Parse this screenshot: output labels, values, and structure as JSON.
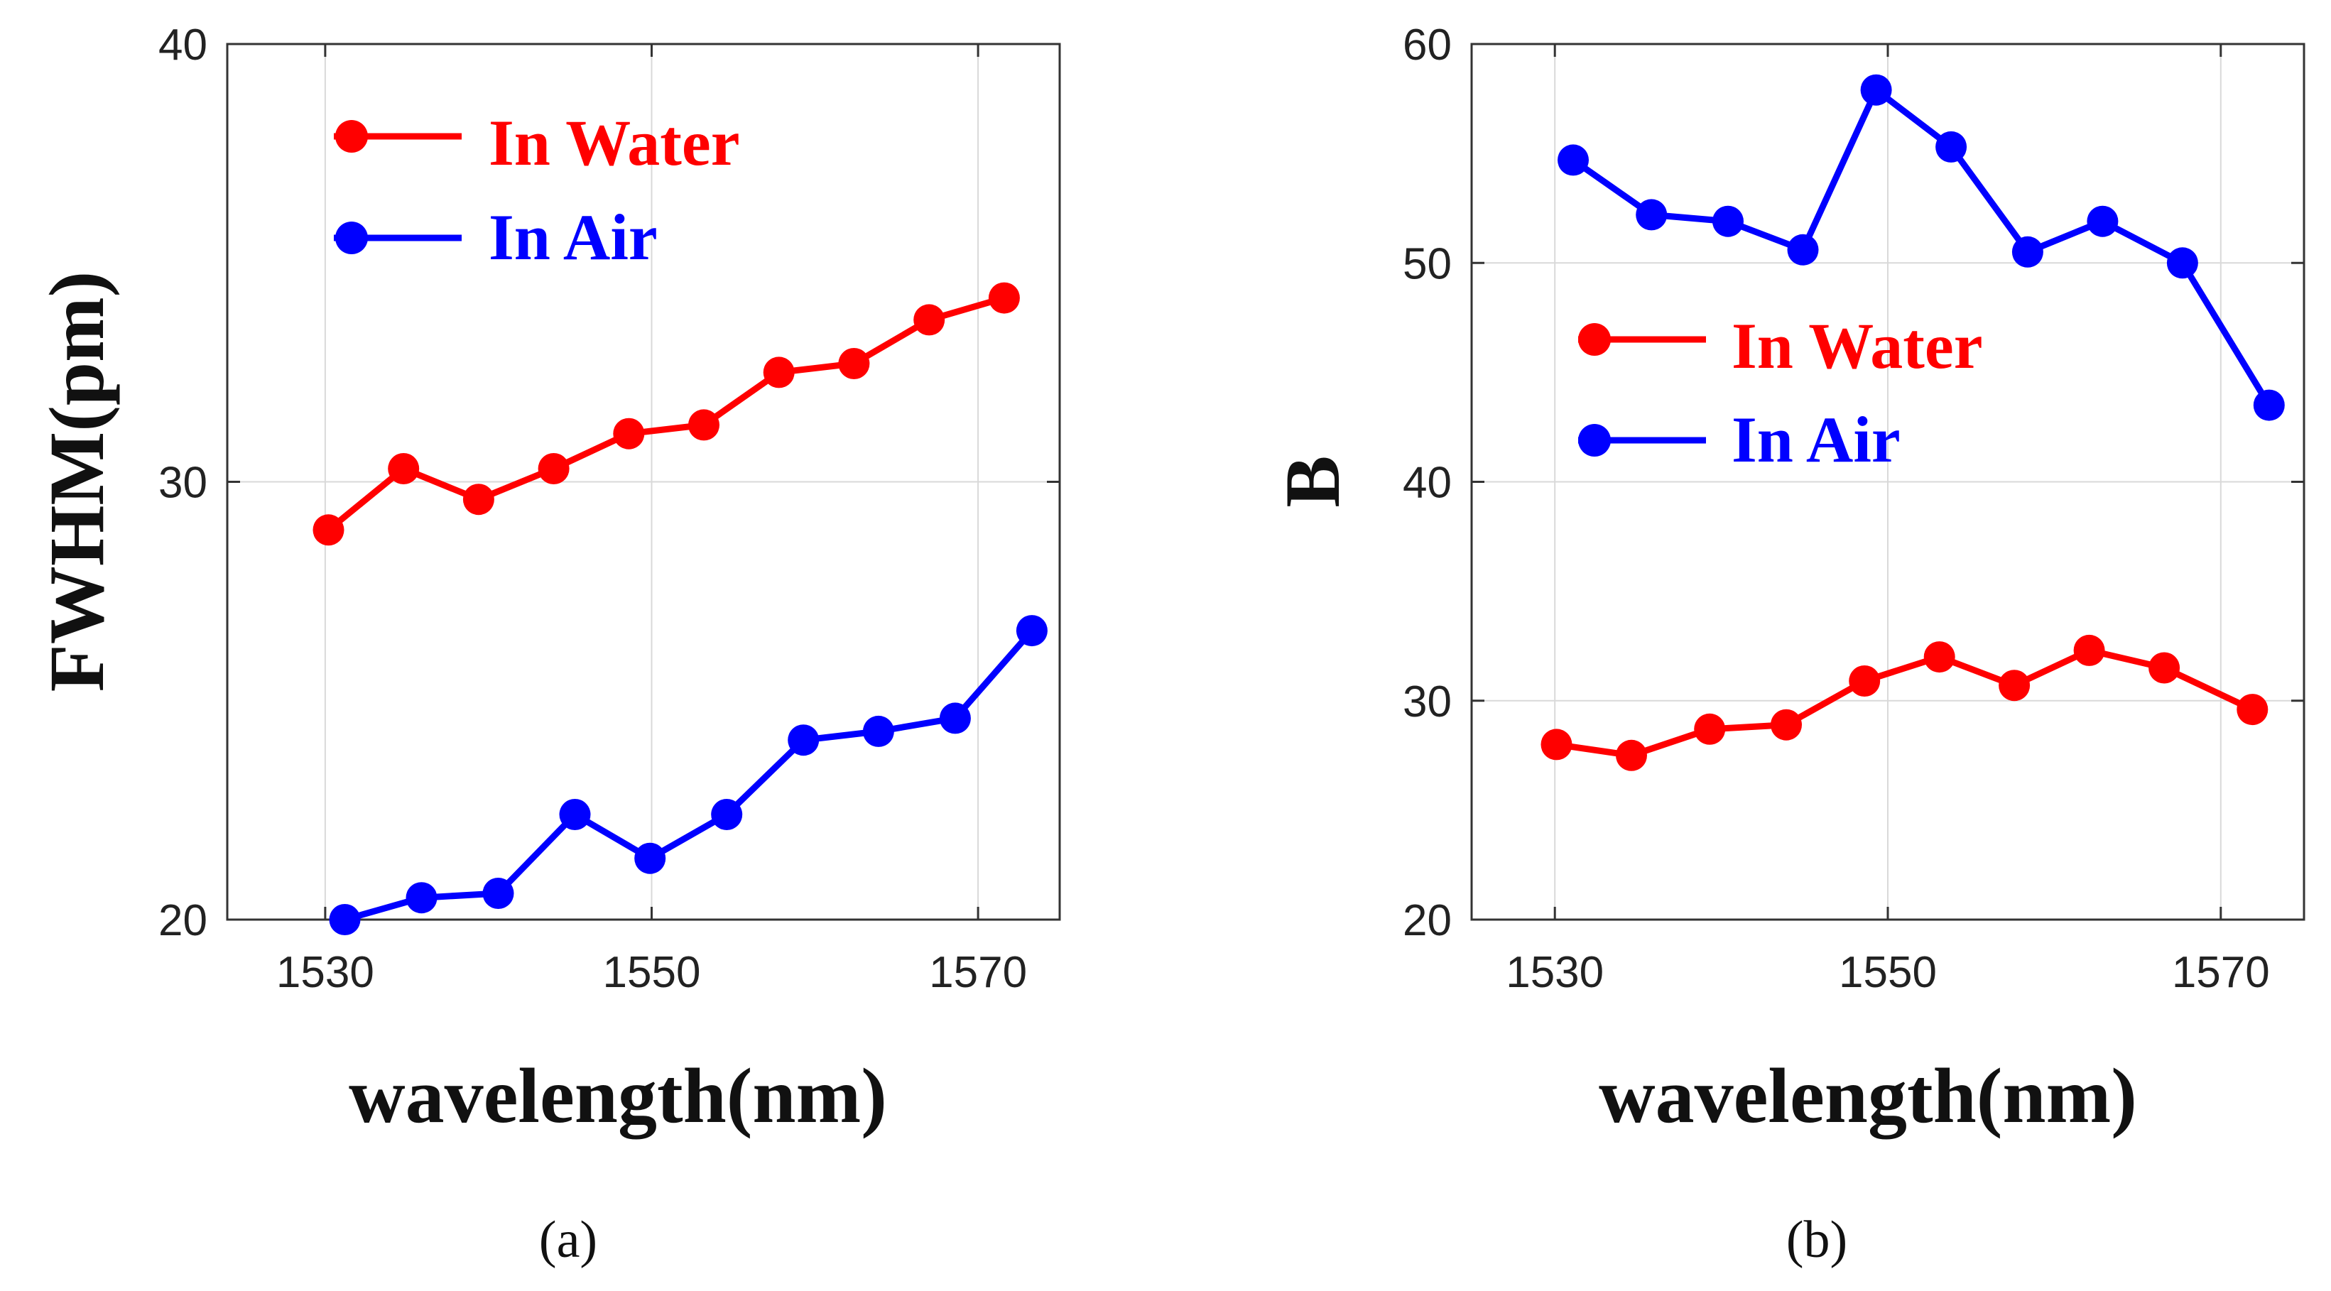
{
  "chart_data": [
    {
      "type": "line",
      "panel_label": "(a)",
      "title": "",
      "xlabel": "wavelength(nm)",
      "ylabel": "FWHM(pm)",
      "xlim": [
        1524,
        1575
      ],
      "ylim": [
        20,
        40
      ],
      "xticks": [
        1530,
        1550,
        1570
      ],
      "yticks": [
        20,
        30,
        40
      ],
      "grid": true,
      "legend_position": "top-left",
      "series": [
        {
          "name": "In Water",
          "color": "#ff0000",
          "x": [
            1530.2,
            1534.8,
            1539.4,
            1544.0,
            1548.6,
            1553.2,
            1557.8,
            1562.4,
            1567.0,
            1571.6
          ],
          "y": [
            28.9,
            30.3,
            29.6,
            30.3,
            31.1,
            31.3,
            32.5,
            32.7,
            33.7,
            34.2
          ]
        },
        {
          "name": "In Air",
          "color": "#0000ff",
          "x": [
            1531.2,
            1535.9,
            1540.6,
            1545.3,
            1549.9,
            1554.6,
            1559.3,
            1563.9,
            1568.6,
            1573.3
          ],
          "y": [
            20.0,
            20.5,
            20.6,
            22.4,
            21.4,
            22.4,
            24.1,
            24.3,
            24.6,
            26.6
          ]
        }
      ]
    },
    {
      "type": "line",
      "panel_label": "(b)",
      "title": "",
      "xlabel": "wavelength(nm)",
      "ylabel": "B",
      "xlim": [
        1525,
        1575
      ],
      "ylim": [
        20,
        60
      ],
      "xticks": [
        1530,
        1550,
        1570
      ],
      "yticks": [
        20,
        30,
        40,
        50,
        60
      ],
      "grid": true,
      "legend_position": "center-left",
      "series": [
        {
          "name": "In Water",
          "color": "#ff0000",
          "x": [
            1530.1,
            1534.6,
            1539.3,
            1543.9,
            1548.6,
            1553.1,
            1557.6,
            1562.1,
            1566.6,
            1571.9
          ],
          "y": [
            28.0,
            27.5,
            28.7,
            28.9,
            30.9,
            32.0,
            30.7,
            32.3,
            31.5,
            29.6
          ]
        },
        {
          "name": "In Air",
          "color": "#0000ff",
          "x": [
            1531.1,
            1535.8,
            1540.4,
            1544.9,
            1549.3,
            1553.8,
            1558.4,
            1562.9,
            1567.7,
            1572.9
          ],
          "y": [
            54.7,
            52.2,
            51.9,
            50.6,
            57.9,
            55.3,
            50.5,
            51.9,
            50.0,
            43.5
          ]
        }
      ]
    }
  ]
}
